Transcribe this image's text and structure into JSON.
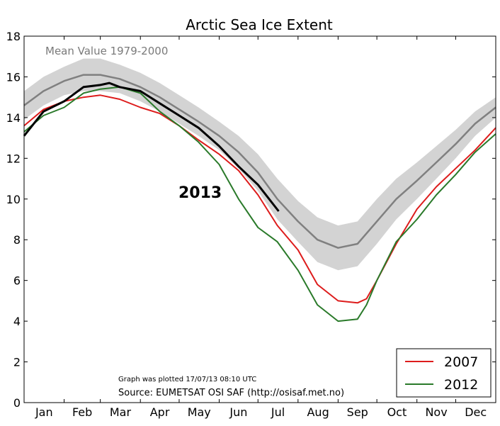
{
  "chart_data": {
    "type": "line",
    "title": "Arctic Sea Ice Extent",
    "ylim": [
      0,
      18
    ],
    "yticks": [
      0,
      2,
      4,
      6,
      8,
      10,
      12,
      14,
      16,
      18
    ],
    "month_labels": [
      "Jan",
      "Feb",
      "Mar",
      "Apr",
      "May",
      "Jun",
      "Jul",
      "Aug",
      "Sep",
      "Oct",
      "Nov",
      "Dec"
    ],
    "mean_label": "Mean Value 1979-2000",
    "annotation_2013": "2013",
    "plotted_note": "Graph was plotted 17/07/13 08:10 UTC",
    "source_note": "Source: EUMETSAT OSI SAF (http://osisaf.met.no)",
    "legend_position": "bottom-right",
    "series": [
      {
        "name": "Mean Value 1979-2000",
        "role": "mean",
        "color": "#808080",
        "x": [
          0,
          15,
          31,
          46,
          59,
          74,
          90,
          105,
          120,
          135,
          151,
          166,
          181,
          196,
          212,
          227,
          243,
          258,
          273,
          288,
          304,
          319,
          334,
          349,
          365
        ],
        "values": [
          14.6,
          15.3,
          15.8,
          16.1,
          16.1,
          15.9,
          15.5,
          15.0,
          14.4,
          13.8,
          13.1,
          12.3,
          11.3,
          10.0,
          8.9,
          8.0,
          7.6,
          7.8,
          8.9,
          10.0,
          10.9,
          11.8,
          12.7,
          13.7,
          14.5
        ],
        "band": [
          0.7,
          0.7,
          0.7,
          0.8,
          0.8,
          0.7,
          0.7,
          0.7,
          0.7,
          0.7,
          0.7,
          0.8,
          0.9,
          1.0,
          1.0,
          1.1,
          1.1,
          1.1,
          1.1,
          1.0,
          0.9,
          0.8,
          0.7,
          0.6,
          0.5
        ]
      },
      {
        "name": "2007",
        "color": "#dd1c1c",
        "x": [
          0,
          15,
          31,
          46,
          59,
          74,
          90,
          105,
          120,
          135,
          151,
          166,
          181,
          196,
          212,
          227,
          243,
          258,
          265,
          273,
          288,
          304,
          319,
          334,
          349,
          365
        ],
        "values": [
          13.6,
          14.4,
          14.8,
          15.0,
          15.1,
          14.9,
          14.5,
          14.2,
          13.6,
          12.9,
          12.2,
          11.4,
          10.2,
          8.7,
          7.5,
          5.8,
          5.0,
          4.9,
          5.1,
          6.0,
          7.8,
          9.5,
          10.6,
          11.5,
          12.4,
          13.5
        ]
      },
      {
        "name": "2012",
        "color": "#2a7a2a",
        "x": [
          0,
          15,
          31,
          46,
          59,
          74,
          90,
          105,
          120,
          135,
          151,
          166,
          181,
          196,
          212,
          227,
          243,
          258,
          265,
          273,
          288,
          304,
          319,
          334,
          349,
          365
        ],
        "values": [
          13.3,
          14.1,
          14.5,
          15.2,
          15.4,
          15.5,
          15.2,
          14.3,
          13.6,
          12.8,
          11.7,
          10.0,
          8.6,
          7.9,
          6.5,
          4.8,
          4.0,
          4.1,
          4.8,
          6.0,
          7.9,
          9.0,
          10.2,
          11.2,
          12.3,
          13.2
        ]
      },
      {
        "name": "2013",
        "color": "#000000",
        "x": [
          0,
          15,
          31,
          46,
          59,
          66,
          74,
          90,
          105,
          120,
          135,
          151,
          166,
          181,
          197
        ],
        "values": [
          13.1,
          14.3,
          14.8,
          15.5,
          15.6,
          15.7,
          15.5,
          15.3,
          14.7,
          14.1,
          13.5,
          12.6,
          11.6,
          10.7,
          9.4
        ]
      }
    ]
  }
}
